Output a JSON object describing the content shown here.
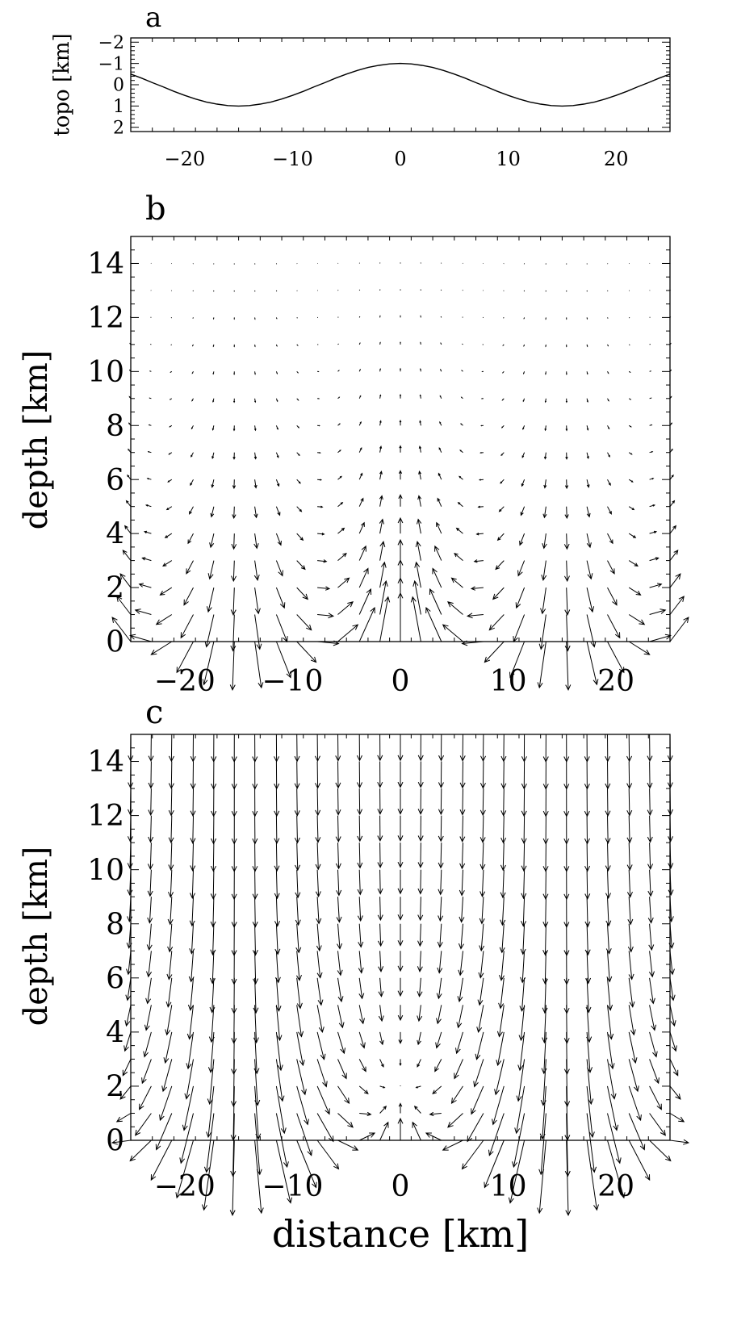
{
  "chart_data": [
    {
      "type": "line",
      "panel_label": "a",
      "xlabel": "",
      "ylabel": "topo [km]",
      "xlim": [
        -25,
        25
      ],
      "ylim": [
        -2.2,
        2.2
      ],
      "xticks": [
        -20,
        -10,
        0,
        10,
        20
      ],
      "xtick_labels": [
        "−20",
        "−10",
        "0",
        "10",
        "20"
      ],
      "yticks": [
        -2,
        -1,
        0,
        1,
        2
      ],
      "ytick_labels": [
        "−2",
        "−1",
        "0",
        "1",
        "2"
      ],
      "series": [
        {
          "x": [
            -25,
            -24,
            -23,
            -22,
            -21,
            -20,
            -19,
            -18,
            -17,
            -16,
            -15,
            -14,
            -13,
            -12,
            -11,
            -10,
            -9,
            -8,
            -7,
            -6,
            -5,
            -4,
            -3,
            -2,
            -1,
            0,
            1,
            2,
            3,
            4,
            5,
            6,
            7,
            8,
            9,
            10,
            11,
            12,
            13,
            14,
            15,
            16,
            17,
            18,
            19,
            20,
            21,
            22,
            23,
            24,
            25
          ],
          "y": [
            -0.5,
            -0.31,
            -0.1,
            0.1,
            0.31,
            0.5,
            0.67,
            0.81,
            0.91,
            0.98,
            1.0,
            0.98,
            0.91,
            0.81,
            0.67,
            0.5,
            0.31,
            0.1,
            -0.1,
            -0.31,
            -0.5,
            -0.67,
            -0.81,
            -0.91,
            -0.98,
            -1.0,
            -0.98,
            -0.91,
            -0.81,
            -0.67,
            -0.5,
            -0.31,
            -0.1,
            0.1,
            0.31,
            0.5,
            0.67,
            0.81,
            0.91,
            0.98,
            1.0,
            0.98,
            0.91,
            0.81,
            0.67,
            0.5,
            0.31,
            0.1,
            -0.1,
            -0.31,
            -0.5
          ]
        }
      ]
    },
    {
      "type": "vector-field",
      "panel_label": "b",
      "xlabel": "",
      "ylabel": "depth [km]",
      "xlim": [
        -25,
        25
      ],
      "ylim": [
        15,
        0
      ],
      "xticks": [
        -20,
        -10,
        0,
        10,
        20
      ],
      "xtick_labels": [
        "−20",
        "−10",
        "0",
        "10",
        "20"
      ],
      "yticks": [
        0,
        2,
        4,
        6,
        8,
        10,
        12,
        14
      ],
      "ytick_labels": [
        "0",
        "2",
        "4",
        "6",
        "8",
        "10",
        "12",
        "14"
      ],
      "field": {
        "x": [
          -25.0,
          -23.1,
          -21.2,
          -19.2,
          -17.3,
          -15.4,
          -13.5,
          -11.5,
          -9.6,
          -7.7,
          -5.8,
          -3.8,
          -1.9,
          0.0,
          1.9,
          3.8,
          5.8,
          7.7,
          9.6,
          11.5,
          13.5,
          15.4,
          17.3,
          19.2,
          21.2,
          23.1,
          25.0
        ],
        "depth": [
          0,
          1,
          2,
          3,
          4,
          5,
          6,
          7,
          8,
          9,
          10,
          11,
          12,
          13,
          14
        ],
        "pattern": "upward flow beneath topographic lows (x = -25, 0, 25), downward flow beneath topographic highs (x = -15, 15), diverging near surface, decaying with depth",
        "decay_depth_km": 3.5
      }
    },
    {
      "type": "vector-field",
      "panel_label": "c",
      "xlabel": "distance [km]",
      "ylabel": "depth [km]",
      "xlim": [
        -25,
        25
      ],
      "ylim": [
        15,
        0
      ],
      "xticks": [
        -20,
        -10,
        0,
        10,
        20
      ],
      "xtick_labels": [
        "−20",
        "−10",
        "0",
        "10",
        "20"
      ],
      "yticks": [
        0,
        2,
        4,
        6,
        8,
        10,
        12,
        14
      ],
      "ytick_labels": [
        "0",
        "2",
        "4",
        "6",
        "8",
        "10",
        "12",
        "14"
      ],
      "field": {
        "x": [
          -25.0,
          -23.1,
          -21.2,
          -19.2,
          -17.3,
          -15.4,
          -13.5,
          -11.5,
          -9.6,
          -7.7,
          -5.8,
          -3.8,
          -1.9,
          0.0,
          1.9,
          3.8,
          5.8,
          7.7,
          9.6,
          11.5,
          13.5,
          15.4,
          17.3,
          19.2,
          21.2,
          23.1,
          25.0
        ],
        "depth": [
          0,
          1,
          2,
          3,
          4,
          5,
          6,
          7,
          8,
          9,
          10,
          11,
          12,
          13,
          14,
          15
        ],
        "pattern": "same near-surface topographic circulation as panel b superposed on a uniform downward flow that dominates at depth",
        "uniform_downward_component": 0.55
      }
    }
  ]
}
